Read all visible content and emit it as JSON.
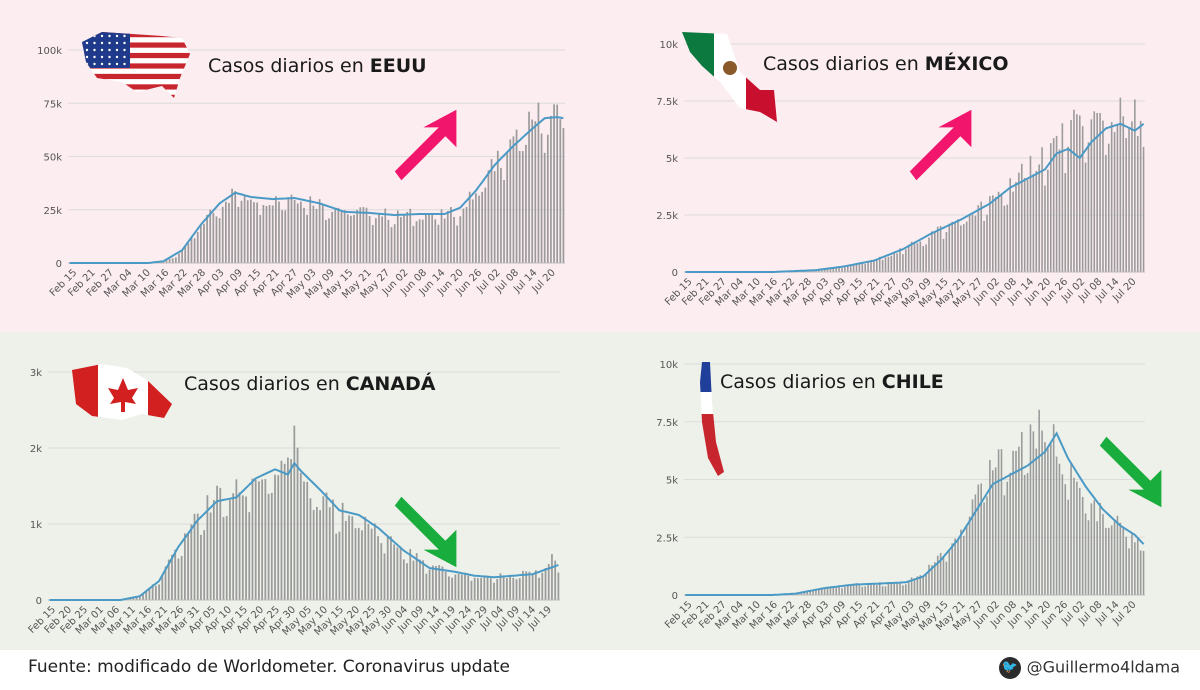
{
  "footer": {
    "source": "Fuente: modificado de Worldometer. Coronavirus update",
    "handle": "@Guillermo4ldama"
  },
  "colors": {
    "pink_bg": "#fcedf1",
    "green_bg": "#eef1ea",
    "bar": "#9b9b9b",
    "line": "#4a9ac5",
    "arrow_up": "#f1166c",
    "arrow_down": "#19ad3d"
  },
  "icons": {
    "twitter": "twitter-bird-icon"
  },
  "chart_data": [
    {
      "type": "bar",
      "id": "usa",
      "title_prefix": "Casos diarios en ",
      "title_bold": "EEUU",
      "flag": "usa-flag-map",
      "trend": "up",
      "yticks": [
        0,
        25000,
        50000,
        75000,
        100000
      ],
      "ytick_labels": [
        "0",
        "25k",
        "50k",
        "75k",
        "100k"
      ],
      "ylim": [
        0,
        100000
      ],
      "xtick_labels": [
        "Feb 15",
        "Feb 21",
        "Feb 27",
        "Mar 04",
        "Mar 10",
        "Mar 16",
        "Mar 22",
        "Mar 28",
        "Apr 03",
        "Apr 09",
        "Apr 15",
        "Apr 21",
        "Apr 27",
        "May 03",
        "May 09",
        "May 15",
        "May 21",
        "May 27",
        "Jun 02",
        "Jun 08",
        "Jun 14",
        "Jun 20",
        "Jun 26",
        "Jul 02",
        "Jul 08",
        "Jul 14",
        "Jul 20"
      ],
      "series": [
        {
          "type": "bar",
          "values": []
        },
        {
          "type": "line",
          "values": []
        }
      ],
      "profile_bar": [
        [
          0,
          0
        ],
        [
          25,
          0
        ],
        [
          30,
          500
        ],
        [
          36,
          5000
        ],
        [
          42,
          18000
        ],
        [
          48,
          28000
        ],
        [
          53,
          33000
        ],
        [
          58,
          31000
        ],
        [
          65,
          30000
        ],
        [
          72,
          32000
        ],
        [
          80,
          28000
        ],
        [
          88,
          25000
        ],
        [
          96,
          24000
        ],
        [
          104,
          22000
        ],
        [
          112,
          23000
        ],
        [
          120,
          22000
        ],
        [
          125,
          25000
        ],
        [
          130,
          33000
        ],
        [
          136,
          47000
        ],
        [
          142,
          55000
        ],
        [
          148,
          65000
        ],
        [
          152,
          70000
        ],
        [
          156,
          66000
        ],
        [
          158,
          67000
        ]
      ],
      "profile_line": [
        [
          0,
          0
        ],
        [
          25,
          0
        ],
        [
          30,
          800
        ],
        [
          36,
          6000
        ],
        [
          42,
          18000
        ],
        [
          48,
          28000
        ],
        [
          53,
          33000
        ],
        [
          58,
          31000
        ],
        [
          65,
          30000
        ],
        [
          72,
          30500
        ],
        [
          80,
          28000
        ],
        [
          88,
          24000
        ],
        [
          96,
          23500
        ],
        [
          104,
          22500
        ],
        [
          112,
          23000
        ],
        [
          120,
          23000
        ],
        [
          125,
          26000
        ],
        [
          130,
          34000
        ],
        [
          136,
          46000
        ],
        [
          142,
          55000
        ],
        [
          148,
          63000
        ],
        [
          152,
          68000
        ],
        [
          156,
          68500
        ],
        [
          158,
          68000
        ]
      ]
    },
    {
      "type": "bar",
      "id": "mexico",
      "title_prefix": "Casos diarios en ",
      "title_bold": "MÉXICO",
      "flag": "mexico-flag-map",
      "trend": "up",
      "yticks": [
        0,
        2500,
        5000,
        7500,
        10000
      ],
      "ytick_labels": [
        "0",
        "2.5k",
        "5k",
        "7.5k",
        "10k"
      ],
      "ylim": [
        0,
        10000
      ],
      "xtick_labels": [
        "Feb 15",
        "Feb 21",
        "Feb 27",
        "Mar 04",
        "Mar 10",
        "Mar 16",
        "Mar 22",
        "Mar 28",
        "Apr 03",
        "Apr 09",
        "Apr 15",
        "Apr 21",
        "Apr 27",
        "May 03",
        "May 09",
        "May 15",
        "May 21",
        "May 27",
        "Jun 02",
        "Jun 08",
        "Jun 14",
        "Jun 20",
        "Jun 26",
        "Jul 02",
        "Jul 08",
        "Jul 14",
        "Jul 20"
      ],
      "series": [
        {
          "type": "bar",
          "values": []
        },
        {
          "type": "line",
          "values": []
        }
      ],
      "profile_bar": [
        [
          0,
          0
        ],
        [
          30,
          0
        ],
        [
          45,
          80
        ],
        [
          55,
          250
        ],
        [
          65,
          500
        ],
        [
          75,
          1000
        ],
        [
          85,
          1700
        ],
        [
          95,
          2300
        ],
        [
          105,
          3000
        ],
        [
          115,
          4200
        ],
        [
          122,
          5000
        ],
        [
          128,
          5600
        ],
        [
          133,
          6200
        ],
        [
          138,
          6500
        ],
        [
          143,
          6600
        ],
        [
          148,
          6700
        ],
        [
          153,
          6900
        ],
        [
          157,
          6700
        ],
        [
          158,
          5200
        ]
      ],
      "profile_line": [
        [
          0,
          0
        ],
        [
          30,
          0
        ],
        [
          45,
          80
        ],
        [
          55,
          250
        ],
        [
          65,
          500
        ],
        [
          75,
          1000
        ],
        [
          85,
          1700
        ],
        [
          95,
          2300
        ],
        [
          105,
          3000
        ],
        [
          112,
          3700
        ],
        [
          118,
          4100
        ],
        [
          124,
          4500
        ],
        [
          128,
          5200
        ],
        [
          132,
          5400
        ],
        [
          136,
          5000
        ],
        [
          140,
          5700
        ],
        [
          145,
          6300
        ],
        [
          150,
          6500
        ],
        [
          155,
          6200
        ],
        [
          158,
          6500
        ]
      ]
    },
    {
      "type": "bar",
      "id": "canada",
      "title_prefix": "Casos diarios en ",
      "title_bold": "CANADÁ",
      "flag": "canada-flag-map",
      "trend": "down",
      "yticks": [
        0,
        1000,
        2000,
        3000
      ],
      "ytick_labels": [
        "0",
        "1k",
        "2k",
        "3k"
      ],
      "ylim": [
        0,
        3000
      ],
      "xtick_labels": [
        "Feb 15",
        "Feb 20",
        "Feb 25",
        "Mar 01",
        "Mar 06",
        "Mar 11",
        "Mar 16",
        "Mar 21",
        "Mar 26",
        "Mar 31",
        "Apr 05",
        "Apr 10",
        "Apr 15",
        "Apr 20",
        "Apr 25",
        "Apr 30",
        "May 05",
        "May 10",
        "May 15",
        "May 20",
        "May 25",
        "May 30",
        "Jun 04",
        "Jun 09",
        "Jun 14",
        "Jun 19",
        "Jun 24",
        "Jun 29",
        "Jul 04",
        "Jul 09",
        "Jul 14",
        "Jul 19"
      ],
      "series": [
        {
          "type": "bar",
          "values": []
        },
        {
          "type": "line",
          "values": []
        }
      ],
      "profile_bar": [
        [
          0,
          0
        ],
        [
          22,
          0
        ],
        [
          28,
          50
        ],
        [
          34,
          250
        ],
        [
          40,
          700
        ],
        [
          46,
          1100
        ],
        [
          52,
          1350
        ],
        [
          58,
          1400
        ],
        [
          64,
          1600
        ],
        [
          70,
          1700
        ],
        [
          74,
          1650
        ],
        [
          76,
          2750
        ],
        [
          78,
          1500
        ],
        [
          84,
          1300
        ],
        [
          90,
          1150
        ],
        [
          96,
          1050
        ],
        [
          102,
          900
        ],
        [
          110,
          650
        ],
        [
          118,
          450
        ],
        [
          126,
          350
        ],
        [
          132,
          320
        ],
        [
          138,
          300
        ],
        [
          144,
          330
        ],
        [
          150,
          350
        ],
        [
          154,
          450
        ],
        [
          156,
          600
        ],
        [
          158,
          400
        ]
      ],
      "profile_line": [
        [
          0,
          0
        ],
        [
          22,
          0
        ],
        [
          28,
          50
        ],
        [
          34,
          250
        ],
        [
          40,
          700
        ],
        [
          46,
          1050
        ],
        [
          52,
          1300
        ],
        [
          58,
          1350
        ],
        [
          64,
          1600
        ],
        [
          70,
          1720
        ],
        [
          74,
          1650
        ],
        [
          76,
          1800
        ],
        [
          78,
          1700
        ],
        [
          84,
          1450
        ],
        [
          90,
          1180
        ],
        [
          96,
          1120
        ],
        [
          102,
          950
        ],
        [
          110,
          650
        ],
        [
          118,
          420
        ],
        [
          126,
          370
        ],
        [
          132,
          320
        ],
        [
          138,
          300
        ],
        [
          144,
          320
        ],
        [
          150,
          340
        ],
        [
          154,
          400
        ],
        [
          158,
          460
        ]
      ]
    },
    {
      "type": "bar",
      "id": "chile",
      "title_prefix": "Casos diarios en ",
      "title_bold": "CHILE",
      "flag": "chile-flag-map",
      "trend": "down",
      "yticks": [
        0,
        2500,
        5000,
        7500,
        10000
      ],
      "ytick_labels": [
        "0",
        "2.5k",
        "5k",
        "7.5k",
        "10k"
      ],
      "ylim": [
        0,
        10000
      ],
      "xtick_labels": [
        "Feb 15",
        "Feb 21",
        "Feb 27",
        "Mar 04",
        "Mar 10",
        "Mar 16",
        "Mar 22",
        "Mar 28",
        "Apr 03",
        "Apr 09",
        "Apr 15",
        "Apr 21",
        "Apr 27",
        "May 03",
        "May 09",
        "May 15",
        "May 21",
        "May 27",
        "Jun 02",
        "Jun 08",
        "Jun 14",
        "Jun 20",
        "Jun 26",
        "Jul 02",
        "Jul 08",
        "Jul 14",
        "Jul 20"
      ],
      "series": [
        {
          "type": "bar",
          "values": []
        },
        {
          "type": "line",
          "values": []
        }
      ],
      "profile_bar": [
        [
          0,
          0
        ],
        [
          30,
          0
        ],
        [
          38,
          60
        ],
        [
          48,
          300
        ],
        [
          58,
          450
        ],
        [
          68,
          500
        ],
        [
          76,
          550
        ],
        [
          82,
          1000
        ],
        [
          88,
          1700
        ],
        [
          94,
          2500
        ],
        [
          100,
          4200
        ],
        [
          106,
          5500
        ],
        [
          112,
          6000
        ],
        [
          118,
          6800
        ],
        [
          124,
          7200
        ],
        [
          128,
          6500
        ],
        [
          132,
          5300
        ],
        [
          138,
          4000
        ],
        [
          144,
          3400
        ],
        [
          150,
          3000
        ],
        [
          155,
          2500
        ],
        [
          158,
          1700
        ]
      ],
      "profile_line": [
        [
          0,
          0
        ],
        [
          30,
          0
        ],
        [
          38,
          60
        ],
        [
          48,
          300
        ],
        [
          58,
          450
        ],
        [
          68,
          500
        ],
        [
          76,
          550
        ],
        [
          82,
          800
        ],
        [
          88,
          1500
        ],
        [
          94,
          2400
        ],
        [
          100,
          3600
        ],
        [
          106,
          4800
        ],
        [
          112,
          5200
        ],
        [
          118,
          5600
        ],
        [
          124,
          6200
        ],
        [
          128,
          7000
        ],
        [
          132,
          5900
        ],
        [
          138,
          4700
        ],
        [
          144,
          3700
        ],
        [
          150,
          3000
        ],
        [
          155,
          2600
        ],
        [
          158,
          2200
        ]
      ]
    }
  ]
}
